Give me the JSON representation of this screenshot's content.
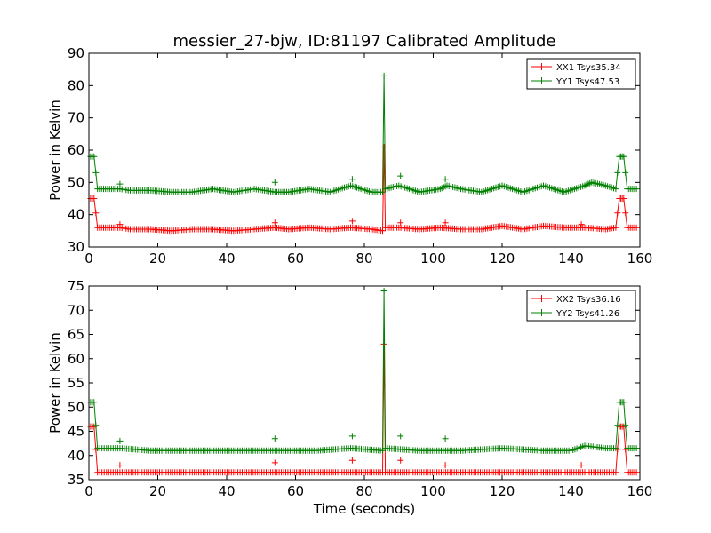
{
  "figure": {
    "title": "messier_27-bjw, ID:81197 Calibrated Amplitude",
    "xlabel": "Time (seconds)"
  },
  "colors": {
    "xx": "#ff0000",
    "yy": "#008000"
  },
  "chart_data": [
    {
      "type": "line",
      "title": "messier_27-bjw, ID:81197 Calibrated Amplitude",
      "xlabel": "",
      "ylabel": "Power in Kelvin",
      "xlim": [
        0,
        160
      ],
      "ylim": [
        30,
        90
      ],
      "xticks": [
        0,
        20,
        40,
        60,
        80,
        100,
        120,
        140,
        160
      ],
      "yticks": [
        30,
        40,
        50,
        60,
        70,
        80,
        90
      ],
      "grid": false,
      "legend_position": "top-right",
      "series": [
        {
          "name": "XX1 Tsys35.34",
          "color": "#ff0000",
          "marker": "plus",
          "points": [
            [
              0.5,
              45
            ],
            [
              1.5,
              45
            ],
            [
              2.5,
              36
            ],
            [
              6,
              36
            ],
            [
              9,
              36
            ],
            [
              12,
              35.5
            ],
            [
              18,
              35.5
            ],
            [
              24,
              35
            ],
            [
              30,
              35.5
            ],
            [
              36,
              35.5
            ],
            [
              42,
              35
            ],
            [
              48,
              35.5
            ],
            [
              54,
              36
            ],
            [
              58,
              35.5
            ],
            [
              64,
              36
            ],
            [
              70,
              35.5
            ],
            [
              76,
              36
            ],
            [
              82,
              35.5
            ],
            [
              85.3,
              35
            ],
            [
              85.7,
              61
            ],
            [
              86.1,
              36
            ],
            [
              90,
              36
            ],
            [
              96,
              35.5
            ],
            [
              102,
              36
            ],
            [
              108,
              35.5
            ],
            [
              114,
              35.5
            ],
            [
              120,
              36.5
            ],
            [
              126,
              35.5
            ],
            [
              132,
              36.5
            ],
            [
              138,
              36
            ],
            [
              144,
              36
            ],
            [
              150,
              35.5
            ],
            [
              153,
              36
            ],
            [
              154,
              45
            ],
            [
              155.3,
              45
            ],
            [
              156.3,
              36
            ],
            [
              159,
              36
            ]
          ],
          "spikes": [
            [
              9,
              37
            ],
            [
              54,
              37.5
            ],
            [
              76.5,
              38
            ],
            [
              90.5,
              37.5
            ],
            [
              103.5,
              37.5
            ],
            [
              143,
              37
            ]
          ]
        },
        {
          "name": "YY1 Tsys47.53",
          "color": "#008000",
          "marker": "plus",
          "points": [
            [
              0.5,
              58
            ],
            [
              1.5,
              58
            ],
            [
              2.5,
              48
            ],
            [
              6,
              48
            ],
            [
              9,
              48
            ],
            [
              12,
              47.5
            ],
            [
              18,
              47.5
            ],
            [
              24,
              47
            ],
            [
              30,
              47
            ],
            [
              36,
              48
            ],
            [
              42,
              47
            ],
            [
              48,
              48
            ],
            [
              54,
              47
            ],
            [
              58,
              47
            ],
            [
              64,
              48
            ],
            [
              70,
              47
            ],
            [
              76,
              49
            ],
            [
              82,
              47
            ],
            [
              85.3,
              47
            ],
            [
              85.7,
              83
            ],
            [
              86.1,
              48
            ],
            [
              90,
              49
            ],
            [
              96,
              47
            ],
            [
              102,
              48
            ],
            [
              104,
              49
            ],
            [
              108,
              48
            ],
            [
              114,
              47
            ],
            [
              120,
              49
            ],
            [
              126,
              47
            ],
            [
              132,
              49
            ],
            [
              138,
              47
            ],
            [
              144,
              49
            ],
            [
              146,
              50
            ],
            [
              150,
              49
            ],
            [
              153,
              48
            ],
            [
              154,
              58
            ],
            [
              155.3,
              58
            ],
            [
              156.3,
              48
            ],
            [
              159,
              48
            ]
          ],
          "spikes": [
            [
              9,
              49.5
            ],
            [
              54,
              50
            ],
            [
              76.5,
              51
            ],
            [
              90.5,
              52
            ],
            [
              103.5,
              51
            ]
          ]
        }
      ]
    },
    {
      "type": "line",
      "title": "",
      "xlabel": "Time (seconds)",
      "ylabel": "Power in Kelvin",
      "xlim": [
        0,
        160
      ],
      "ylim": [
        35,
        75
      ],
      "xticks": [
        0,
        20,
        40,
        60,
        80,
        100,
        120,
        140,
        160
      ],
      "yticks": [
        35,
        40,
        45,
        50,
        55,
        60,
        65,
        70,
        75
      ],
      "grid": false,
      "legend_position": "top-right",
      "series": [
        {
          "name": "XX2 Tsys36.16",
          "color": "#ff0000",
          "marker": "plus",
          "points": [
            [
              0.5,
              46
            ],
            [
              1.5,
              46
            ],
            [
              2.5,
              36.5
            ],
            [
              9,
              36.5
            ],
            [
              18,
              36.5
            ],
            [
              30,
              36.5
            ],
            [
              42,
              36.5
            ],
            [
              54,
              36.5
            ],
            [
              66,
              36.5
            ],
            [
              76,
              36.5
            ],
            [
              85.3,
              36.5
            ],
            [
              85.7,
              63
            ],
            [
              86.1,
              36.5
            ],
            [
              96,
              36.5
            ],
            [
              108,
              36.5
            ],
            [
              120,
              36.5
            ],
            [
              132,
              36.5
            ],
            [
              144,
              36.5
            ],
            [
              153,
              36.5
            ],
            [
              154,
              46
            ],
            [
              155.3,
              46
            ],
            [
              156.3,
              36.5
            ],
            [
              159,
              36.5
            ]
          ],
          "spikes": [
            [
              9,
              38
            ],
            [
              54,
              38.5
            ],
            [
              76.5,
              39
            ],
            [
              90.5,
              39
            ],
            [
              103.5,
              38
            ],
            [
              143,
              38
            ]
          ]
        },
        {
          "name": "YY2 Tsys41.26",
          "color": "#008000",
          "marker": "plus",
          "points": [
            [
              0.5,
              51
            ],
            [
              1.5,
              51
            ],
            [
              2.5,
              41.5
            ],
            [
              9,
              41.5
            ],
            [
              18,
              41
            ],
            [
              30,
              41
            ],
            [
              42,
              41
            ],
            [
              54,
              41
            ],
            [
              66,
              41
            ],
            [
              76,
              41.5
            ],
            [
              85.3,
              41
            ],
            [
              85.7,
              74
            ],
            [
              86.1,
              41.5
            ],
            [
              96,
              41
            ],
            [
              108,
              41
            ],
            [
              120,
              41.5
            ],
            [
              132,
              41
            ],
            [
              140,
              41
            ],
            [
              144,
              42
            ],
            [
              150,
              41.5
            ],
            [
              153,
              41.5
            ],
            [
              154,
              51
            ],
            [
              155.3,
              51
            ],
            [
              156.3,
              41.5
            ],
            [
              159,
              41.5
            ]
          ],
          "spikes": [
            [
              9,
              43
            ],
            [
              54,
              43.5
            ],
            [
              76.5,
              44
            ],
            [
              90.5,
              44
            ],
            [
              103.5,
              43.5
            ]
          ]
        }
      ]
    }
  ]
}
